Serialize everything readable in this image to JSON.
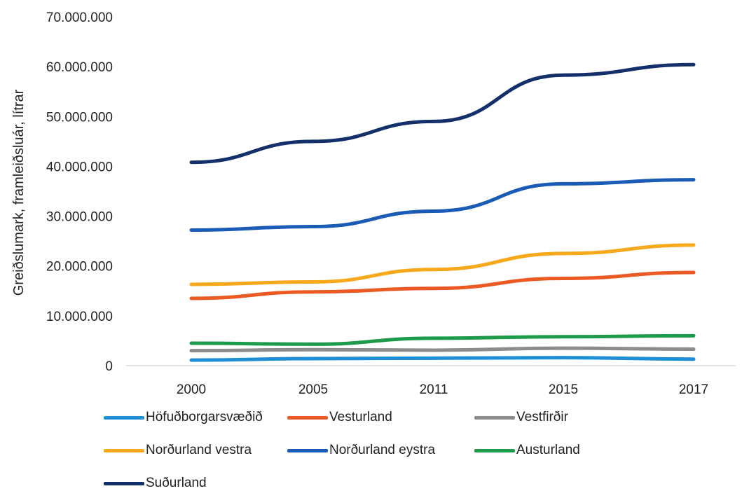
{
  "chart_data": {
    "type": "line",
    "title": "",
    "xlabel": "",
    "ylabel": "Greiðslumark, framleiðsluár, lítrar",
    "categories": [
      "2000",
      "2005",
      "2011",
      "2015",
      "2017"
    ],
    "ylim": [
      0,
      70000000
    ],
    "yticks": [
      0,
      10000000,
      20000000,
      30000000,
      40000000,
      50000000,
      60000000,
      70000000
    ],
    "ytick_labels": [
      "0",
      "10.000.000",
      "20.000.000",
      "30.000.000",
      "40.000.000",
      "50.000.000",
      "60.000.000",
      "70.000.000"
    ],
    "grid": false,
    "legend_position": "bottom",
    "series": [
      {
        "name": "Höfuðborgarsvæðið",
        "color": "#1e8fd6",
        "values": [
          1100000,
          1400000,
          1500000,
          1600000,
          1300000
        ]
      },
      {
        "name": "Vesturland",
        "color": "#ec5a24",
        "values": [
          13500000,
          14800000,
          15500000,
          17500000,
          18700000
        ]
      },
      {
        "name": "Vestfirðir",
        "color": "#8c8c8c",
        "values": [
          3000000,
          3200000,
          3100000,
          3500000,
          3300000
        ]
      },
      {
        "name": "Norðurland vestra",
        "color": "#f7a81b",
        "values": [
          16300000,
          16800000,
          19300000,
          22500000,
          24200000
        ]
      },
      {
        "name": "Norðurland eystra",
        "color": "#1a5bb5",
        "values": [
          27200000,
          27900000,
          31000000,
          36500000,
          37300000
        ]
      },
      {
        "name": "Austurland",
        "color": "#1e9b4a",
        "values": [
          4500000,
          4300000,
          5500000,
          5800000,
          6000000
        ]
      },
      {
        "name": "Suðurland",
        "color": "#13306a",
        "values": [
          40800000,
          45000000,
          49000000,
          58300000,
          60400000
        ]
      }
    ]
  }
}
